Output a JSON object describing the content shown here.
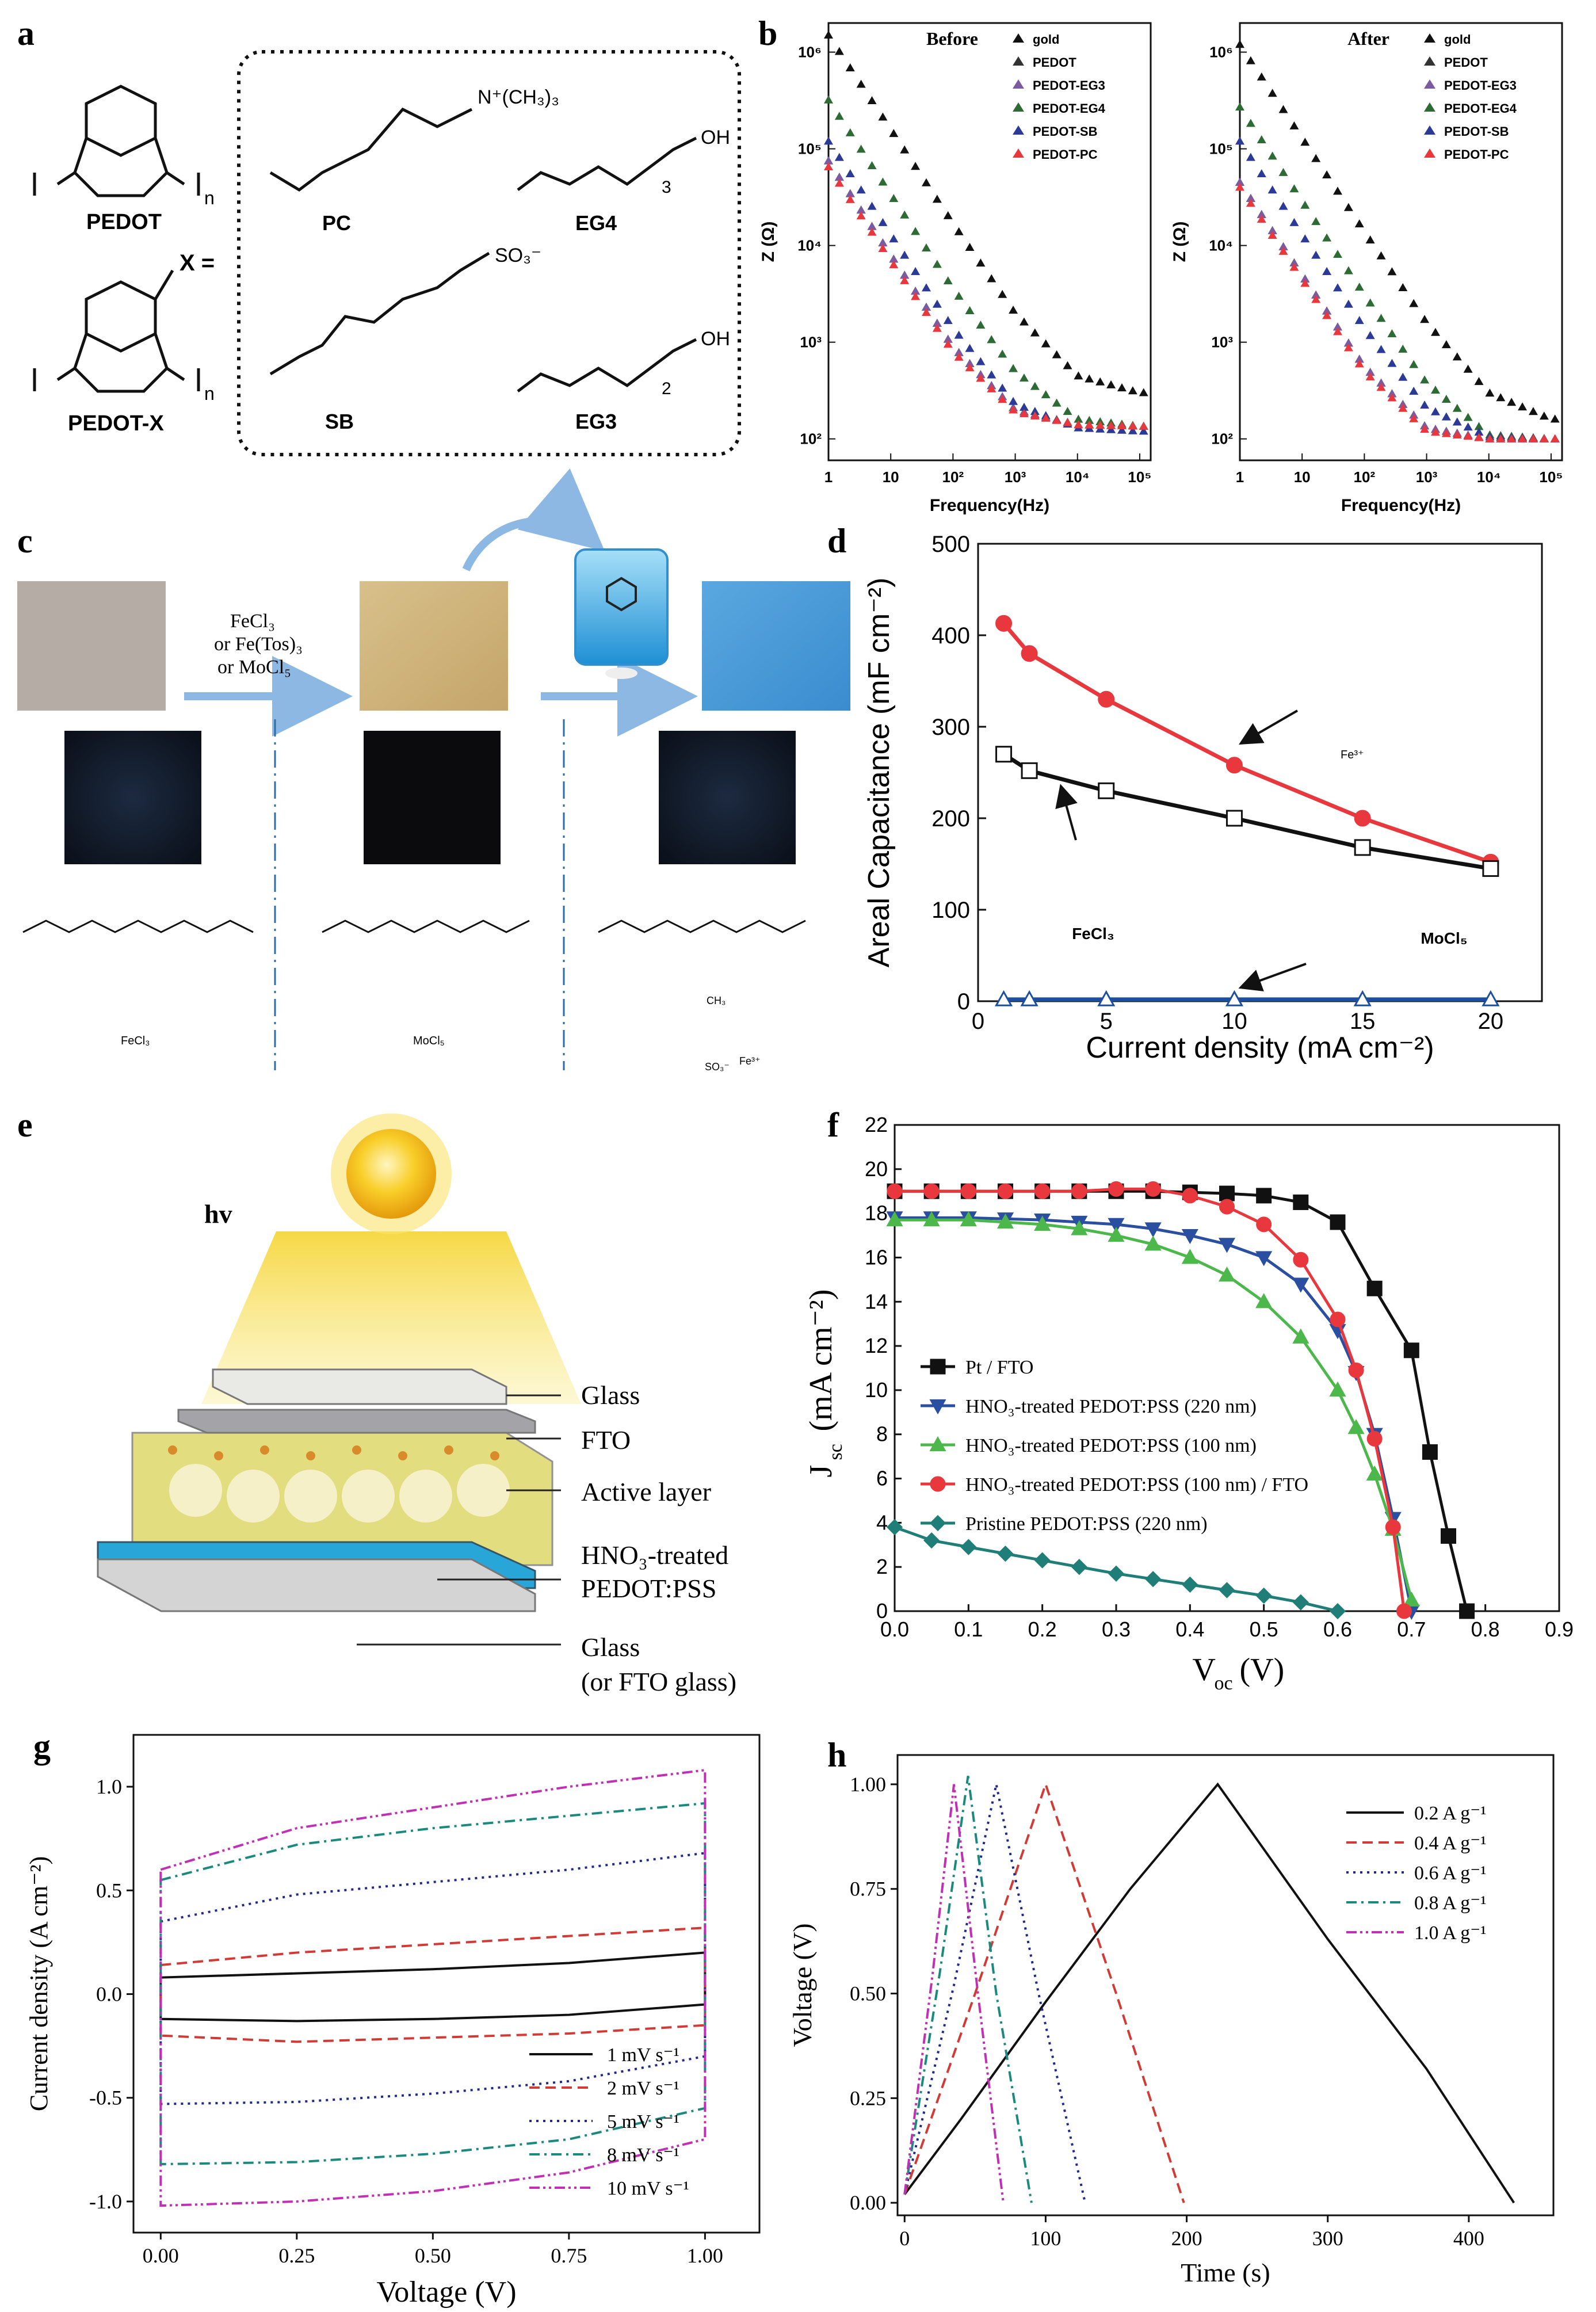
{
  "panel_letters": {
    "a": "a",
    "b": "b",
    "c": "c",
    "d": "d",
    "e": "e",
    "f": "f",
    "g": "g",
    "h": "h"
  },
  "panel_a": {
    "pedot_label": "PEDOT",
    "pedotx_label": "PEDOT-X",
    "x_eq": "X =",
    "groups": [
      "PC",
      "EG4",
      "SB",
      "EG3"
    ],
    "pc_cation": "N⁺(CH₃)₃",
    "sb_anion": "SO₃⁻",
    "oh": "OH",
    "n": "n",
    "sub3": "3",
    "sub2": "2"
  },
  "panel_b": {
    "xlabel": "Frequency(Hz)",
    "ylabel": "Z (Ω)",
    "xticks": [
      "1",
      "10",
      "10²",
      "10³",
      "10⁴",
      "10⁵"
    ],
    "yticks": [
      "10²",
      "10³",
      "10⁴",
      "10⁵",
      "10⁶"
    ],
    "legend": [
      "gold",
      "PEDOT",
      "PEDOT-EG3",
      "PEDOT-EG4",
      "PEDOT-SB",
      "PEDOT-PC"
    ],
    "colors": [
      "#111111",
      "#333333",
      "#7a5aa0",
      "#2e6b34",
      "#2a3a96",
      "#e8383d"
    ],
    "titles": [
      "Before",
      "After"
    ]
  },
  "panel_c": {
    "reagent_lines": [
      "FeCl₃",
      "or Fe(Tos)₃",
      "or MoCl₅"
    ],
    "labels": [
      "FeCl₃",
      "MoCl₅"
    ],
    "fe3": "Fe³⁺",
    "ch3": "CH₃",
    "so3": "SO₃⁻"
  },
  "panel_d": {
    "xlabel": "Current density (mA cm⁻²)",
    "ylabel": "Areal Capacitance (mF cm⁻²)",
    "annotations": [
      "FeCl₃",
      "MoCl₅",
      "Fe³⁺"
    ],
    "xticks": [
      "0",
      "5",
      "10",
      "15",
      "20"
    ],
    "yticks": [
      "0",
      "100",
      "200",
      "300",
      "400",
      "500"
    ]
  },
  "panel_e": {
    "hv": "hv",
    "layers": [
      "Glass",
      "FTO",
      "Active layer",
      "HNO₃-treated",
      "PEDOT:PSS",
      "Glass",
      "(or FTO glass)"
    ]
  },
  "panel_f": {
    "xlabel": "V",
    "xlabel_sub": "oc",
    "xlabel_unit": " (V)",
    "ylabel": "J",
    "ylabel_sub": "sc",
    "ylabel_unit": " (mA cm⁻²)",
    "xticks": [
      "0.0",
      "0.1",
      "0.2",
      "0.3",
      "0.4",
      "0.5",
      "0.6",
      "0.7",
      "0.8",
      "0.9"
    ],
    "yticks": [
      "0",
      "2",
      "4",
      "6",
      "8",
      "10",
      "12",
      "14",
      "16",
      "18",
      "20",
      "22"
    ],
    "legend": [
      "Pt / FTO",
      "HNO₃-treated PEDOT:PSS (220 nm)",
      "HNO₃-treated PEDOT:PSS (100 nm)",
      "HNO₃-treated PEDOT:PSS (100 nm) / FTO",
      "Pristine PEDOT:PSS (220 nm)"
    ]
  },
  "panel_g": {
    "xlabel": "Voltage  (V)",
    "ylabel": "Current density  (A cm⁻²)",
    "xticks": [
      "0.00",
      "0.25",
      "0.50",
      "0.75",
      "1.00"
    ],
    "yticks": [
      "-1.0",
      "-0.5",
      "0.0",
      "0.5",
      "1.0"
    ],
    "legend": [
      "1 mV s⁻¹",
      "2 mV s⁻¹",
      "5 mV s⁻¹",
      "8 mV s⁻¹",
      "10 mV s⁻¹"
    ]
  },
  "panel_h": {
    "xlabel": "Time  (s)",
    "ylabel": "Voltage  (V)",
    "xticks": [
      "0",
      "100",
      "200",
      "300",
      "400"
    ],
    "yticks": [
      "0.00",
      "0.25",
      "0.50",
      "0.75",
      "1.00"
    ],
    "legend": [
      "0.2 A g⁻¹",
      "0.4 A g⁻¹",
      "0.6 A g⁻¹",
      "0.8 A g⁻¹",
      "1.0 A g⁻¹"
    ]
  },
  "chart_data": [
    {
      "type": "line",
      "panel": "b-before",
      "title": "Before",
      "xlabel": "Frequency(Hz)",
      "ylabel": "Z (Ω)",
      "xscale": "log",
      "yscale": "log",
      "xlim": [
        1,
        150000
      ],
      "ylim": [
        60,
        2000000
      ],
      "x": [
        1,
        10,
        100,
        1000,
        10000,
        100000
      ],
      "series": [
        {
          "name": "gold",
          "color": "#111111",
          "values": [
            1500000,
            160000,
            17000,
            2000,
            450,
            300
          ]
        },
        {
          "name": "PEDOT",
          "color": "#333333",
          "values": [
            75000,
            8000,
            900,
            200,
            140,
            135
          ]
        },
        {
          "name": "PEDOT-EG3",
          "color": "#7a5aa0",
          "values": [
            75000,
            8000,
            900,
            200,
            140,
            135
          ]
        },
        {
          "name": "PEDOT-EG4",
          "color": "#2e6b34",
          "values": [
            320000,
            34000,
            3600,
            500,
            160,
            135
          ]
        },
        {
          "name": "PEDOT-SB",
          "color": "#2a3a96",
          "values": [
            120000,
            13000,
            1400,
            230,
            130,
            120
          ]
        },
        {
          "name": "PEDOT-PC",
          "color": "#e8383d",
          "values": [
            65000,
            7000,
            800,
            190,
            140,
            135
          ]
        }
      ]
    },
    {
      "type": "line",
      "panel": "b-after",
      "title": "After",
      "xlabel": "Frequency(Hz)",
      "ylabel": "Z (Ω)",
      "xscale": "log",
      "yscale": "log",
      "xlim": [
        1,
        150000
      ],
      "ylim": [
        60,
        2000000
      ],
      "x": [
        1,
        10,
        100,
        1000,
        10000,
        100000
      ],
      "series": [
        {
          "name": "gold",
          "color": "#111111",
          "values": [
            1200000,
            130000,
            14000,
            1600,
            300,
            160
          ]
        },
        {
          "name": "PEDOT",
          "color": "#333333",
          "values": [
            45000,
            5000,
            560,
            130,
            100,
            100
          ]
        },
        {
          "name": "PEDOT-EG3",
          "color": "#7a5aa0",
          "values": [
            45000,
            5000,
            560,
            130,
            100,
            100
          ]
        },
        {
          "name": "PEDOT-EG4",
          "color": "#2e6b34",
          "values": [
            270000,
            29000,
            3100,
            380,
            110,
            100
          ]
        },
        {
          "name": "PEDOT-SB",
          "color": "#2a3a96",
          "values": [
            120000,
            13000,
            1400,
            210,
            105,
            100
          ]
        },
        {
          "name": "PEDOT-PC",
          "color": "#e8383d",
          "values": [
            40000,
            4500,
            500,
            120,
            100,
            100
          ]
        }
      ]
    },
    {
      "type": "line",
      "panel": "d",
      "xlabel": "Current density (mA cm⁻²)",
      "ylabel": "Areal Capacitance (mF cm⁻²)",
      "xlim": [
        0,
        22
      ],
      "ylim": [
        0,
        500
      ],
      "x": [
        1,
        2,
        5,
        10,
        15,
        20
      ],
      "series": [
        {
          "color": "#e8383d",
          "marker": "circle",
          "values": [
            413,
            380,
            330,
            258,
            200,
            152
          ]
        },
        {
          "color": "#111111",
          "marker": "square",
          "values": [
            270,
            252,
            230,
            200,
            168,
            145
          ]
        },
        {
          "color": "#1c4fa0",
          "marker": "triangle",
          "values": [
            2,
            2,
            2,
            2,
            2,
            2
          ]
        }
      ]
    },
    {
      "type": "line",
      "panel": "f",
      "xlabel": "Voc (V)",
      "ylabel": "Jsc (mA cm⁻²)",
      "xlim": [
        0,
        0.9
      ],
      "ylim": [
        0,
        22
      ],
      "series": [
        {
          "name": "Pt / FTO",
          "color": "#111111",
          "marker": "square",
          "x": [
            0,
            0.05,
            0.1,
            0.15,
            0.2,
            0.25,
            0.3,
            0.35,
            0.4,
            0.45,
            0.5,
            0.55,
            0.6,
            0.65,
            0.7,
            0.725,
            0.75,
            0.775
          ],
          "y": [
            19.0,
            19.0,
            19.0,
            19.0,
            19.0,
            19.0,
            19.0,
            19.0,
            18.95,
            18.9,
            18.8,
            18.5,
            17.6,
            14.6,
            11.8,
            7.2,
            3.4,
            0
          ]
        },
        {
          "name": "HNO₃-treated PEDOT:PSS (220 nm)",
          "color": "#2a4ea0",
          "marker": "triangle-down",
          "x": [
            0,
            0.05,
            0.1,
            0.15,
            0.2,
            0.25,
            0.3,
            0.35,
            0.4,
            0.45,
            0.5,
            0.55,
            0.6,
            0.625,
            0.65,
            0.675,
            0.7
          ],
          "y": [
            17.8,
            17.8,
            17.8,
            17.75,
            17.7,
            17.6,
            17.5,
            17.3,
            17.0,
            16.6,
            16.0,
            14.8,
            12.7,
            10.8,
            8.0,
            4.2,
            0
          ]
        },
        {
          "name": "HNO₃-treated PEDOT:PSS (100 nm)",
          "color": "#4cb84c",
          "marker": "triangle-up",
          "x": [
            0,
            0.05,
            0.1,
            0.15,
            0.2,
            0.25,
            0.3,
            0.35,
            0.4,
            0.45,
            0.5,
            0.55,
            0.6,
            0.625,
            0.65,
            0.675,
            0.7
          ],
          "y": [
            17.7,
            17.7,
            17.7,
            17.6,
            17.5,
            17.3,
            17.0,
            16.6,
            16.0,
            15.2,
            14.0,
            12.4,
            10.0,
            8.3,
            6.2,
            3.7,
            0.5
          ]
        },
        {
          "name": "HNO₃-treated PEDOT:PSS (100 nm) / FTO",
          "color": "#e8383d",
          "marker": "circle",
          "x": [
            0,
            0.05,
            0.1,
            0.15,
            0.2,
            0.25,
            0.3,
            0.35,
            0.4,
            0.45,
            0.5,
            0.55,
            0.6,
            0.625,
            0.65,
            0.675,
            0.69
          ],
          "y": [
            19.0,
            19.0,
            19.0,
            19.0,
            19.0,
            19.0,
            19.1,
            19.1,
            18.8,
            18.3,
            17.5,
            15.9,
            13.2,
            10.9,
            7.8,
            3.8,
            0
          ]
        },
        {
          "name": "Pristine PEDOT:PSS (220 nm)",
          "color": "#1f7f78",
          "marker": "diamond",
          "x": [
            0,
            0.05,
            0.1,
            0.15,
            0.2,
            0.25,
            0.3,
            0.35,
            0.4,
            0.45,
            0.5,
            0.55,
            0.6
          ],
          "y": [
            3.8,
            3.2,
            2.9,
            2.6,
            2.3,
            2.0,
            1.7,
            1.45,
            1.2,
            0.95,
            0.7,
            0.4,
            0.0
          ]
        }
      ]
    },
    {
      "type": "line",
      "panel": "g",
      "xlabel": "Voltage (V)",
      "ylabel": "Current density (A cm⁻²)",
      "xlim": [
        -0.05,
        1.1
      ],
      "ylim": [
        -1.15,
        1.25
      ],
      "series": [
        {
          "name": "1 mV s⁻¹",
          "color": "#111111",
          "dash": "solid",
          "upper": [
            0.08,
            0.1,
            0.12,
            0.15,
            0.2
          ],
          "lower": [
            -0.12,
            -0.13,
            -0.12,
            -0.1,
            -0.05
          ]
        },
        {
          "name": "2 mV s⁻¹",
          "color": "#d13a35",
          "dash": "dashed",
          "upper": [
            0.14,
            0.2,
            0.24,
            0.28,
            0.32
          ],
          "lower": [
            -0.2,
            -0.23,
            -0.21,
            -0.19,
            -0.15
          ]
        },
        {
          "name": "5 mV s⁻¹",
          "color": "#1f2a8c",
          "dash": "dotted",
          "upper": [
            0.35,
            0.48,
            0.54,
            0.6,
            0.68
          ],
          "lower": [
            -0.53,
            -0.52,
            -0.48,
            -0.42,
            -0.3
          ]
        },
        {
          "name": "8 mV s⁻¹",
          "color": "#1b8a7e",
          "dash": "dashdot",
          "upper": [
            0.55,
            0.72,
            0.8,
            0.86,
            0.92
          ],
          "lower": [
            -0.82,
            -0.81,
            -0.77,
            -0.7,
            -0.55
          ]
        },
        {
          "name": "10 mV s⁻¹",
          "color": "#c02fb4",
          "dash": "dashdotdot",
          "upper": [
            0.6,
            0.8,
            0.9,
            1.0,
            1.08
          ],
          "lower": [
            -1.02,
            -1.0,
            -0.95,
            -0.86,
            -0.7
          ]
        }
      ],
      "voltages": [
        0.0,
        0.25,
        0.5,
        0.75,
        1.0
      ]
    },
    {
      "type": "line",
      "panel": "h",
      "xlabel": "Time (s)",
      "ylabel": "Voltage (V)",
      "xlim": [
        -5,
        460
      ],
      "ylim": [
        -0.03,
        1.07
      ],
      "series": [
        {
          "name": "0.2 A g⁻¹",
          "color": "#111111",
          "dash": "solid",
          "x": [
            0,
            40,
            100,
            160,
            222,
            300,
            370,
            432
          ],
          "y": [
            0.02,
            0.2,
            0.48,
            0.75,
            1.0,
            0.63,
            0.32,
            0.0
          ]
        },
        {
          "name": "0.4 A g⁻¹",
          "color": "#d13a35",
          "dash": "dashed",
          "x": [
            0,
            50,
            100,
            150,
            198
          ],
          "y": [
            0.02,
            0.5,
            1.0,
            0.5,
            0.0
          ]
        },
        {
          "name": "0.6 A g⁻¹",
          "color": "#1f2a8c",
          "dash": "dotted",
          "x": [
            0,
            35,
            65,
            95,
            128
          ],
          "y": [
            0.02,
            0.52,
            1.0,
            0.5,
            0.0
          ]
        },
        {
          "name": "0.8 A g⁻¹",
          "color": "#1b8a7e",
          "dash": "dashdot",
          "x": [
            0,
            25,
            45,
            65,
            90
          ],
          "y": [
            0.02,
            0.55,
            1.02,
            0.5,
            0.0
          ]
        },
        {
          "name": "1.0 A g⁻¹",
          "color": "#c02fb4",
          "dash": "dashdotdot",
          "x": [
            0,
            20,
            35,
            52,
            70
          ],
          "y": [
            0.02,
            0.55,
            1.0,
            0.5,
            0.0
          ]
        }
      ]
    }
  ]
}
